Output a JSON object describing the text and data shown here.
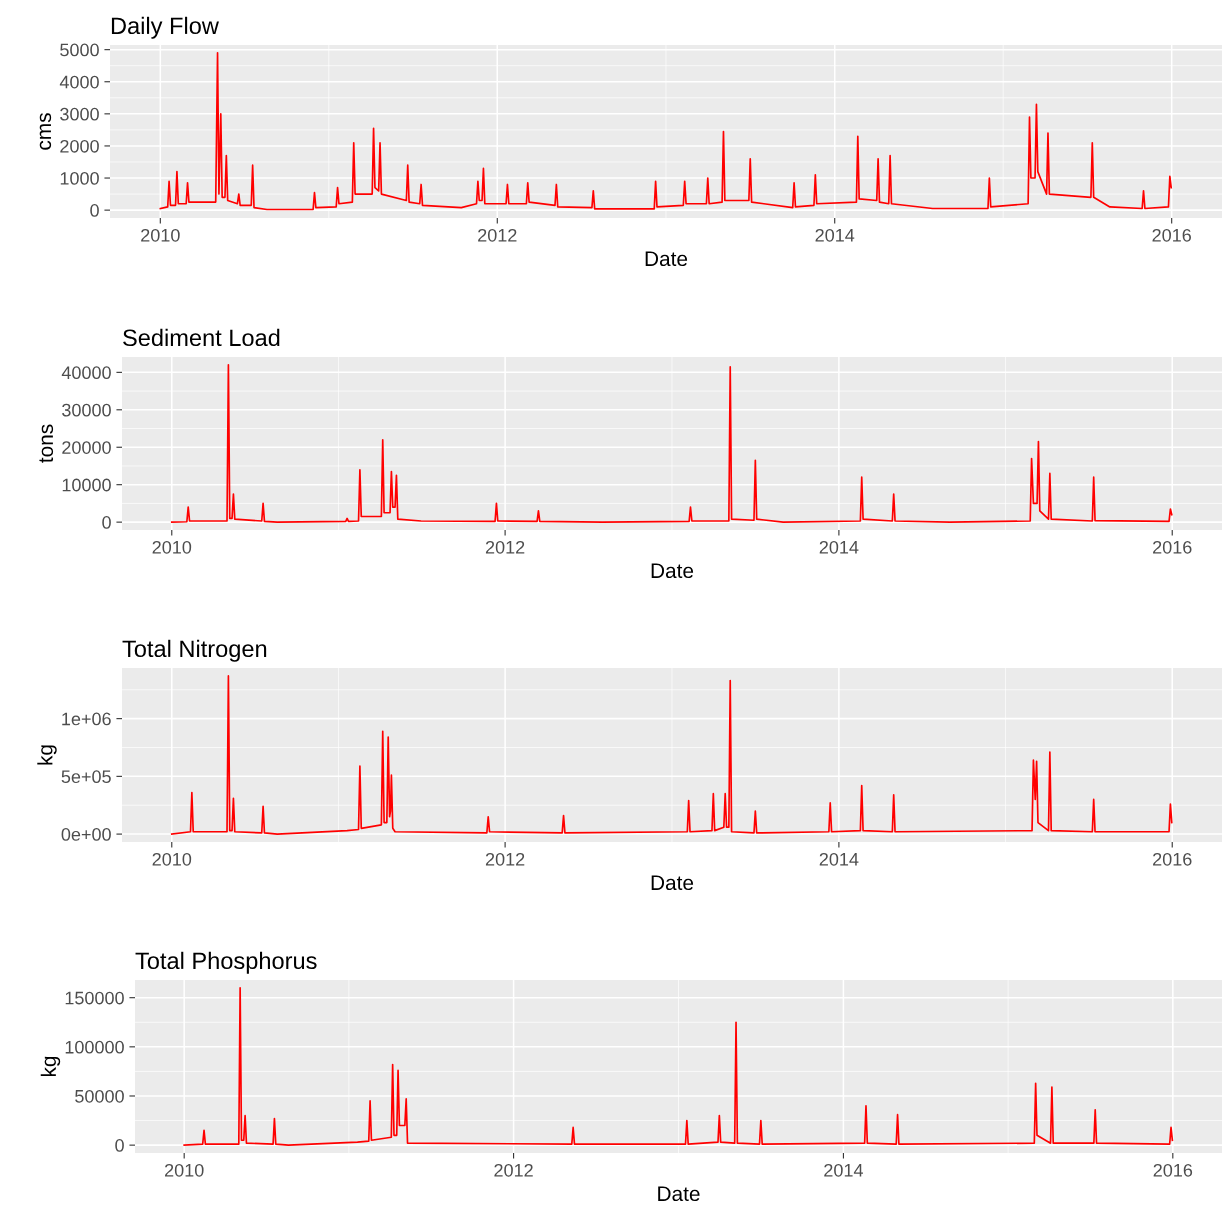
{
  "chart_data": [
    {
      "type": "line",
      "title": "Daily Flow",
      "xlabel": "Date",
      "ylabel": "cms",
      "grid": true,
      "legend": false,
      "marker": "none",
      "line_style": "solid",
      "xlim": [
        "2009-09-14",
        "2016-04-19"
      ],
      "ylim": [
        -245,
        5145
      ],
      "xticks": [
        {
          "value": "2010-01-01",
          "label": "2010"
        },
        {
          "value": "2012-01-01",
          "label": "2012"
        },
        {
          "value": "2014-01-01",
          "label": "2014"
        },
        {
          "value": "2016-01-01",
          "label": "2016"
        }
      ],
      "yticks": [
        0,
        1000,
        2000,
        3000,
        4000,
        5000
      ],
      "series": [
        {
          "color": "#ff0000",
          "x": [
            "2010-01-01",
            "2010-01-17",
            "2010-01-20",
            "2010-01-23",
            "2010-02-03",
            "2010-02-06",
            "2010-02-09",
            "2010-02-26",
            "2010-03-01",
            "2010-03-04",
            "2010-05-01",
            "2010-05-05",
            "2010-05-08",
            "2010-05-12",
            "2010-05-15",
            "2010-05-21",
            "2010-05-24",
            "2010-05-27",
            "2010-06-17",
            "2010-06-20",
            "2010-06-23",
            "2010-07-17",
            "2010-07-20",
            "2010-07-23",
            "2010-08-20",
            "2010-11-28",
            "2010-12-01",
            "2010-12-04",
            "2011-01-17",
            "2011-01-20",
            "2011-01-23",
            "2011-02-21",
            "2011-02-24",
            "2011-02-27",
            "2011-04-05",
            "2011-04-08",
            "2011-04-11",
            "2011-04-19",
            "2011-04-22",
            "2011-04-25",
            "2011-06-18",
            "2011-06-21",
            "2011-06-24",
            "2011-07-17",
            "2011-07-20",
            "2011-07-23",
            "2011-10-15",
            "2011-11-17",
            "2011-11-20",
            "2011-11-23",
            "2011-11-29",
            "2011-12-02",
            "2011-12-05",
            "2012-01-20",
            "2012-01-23",
            "2012-01-26",
            "2012-03-04",
            "2012-03-07",
            "2012-03-10",
            "2012-05-05",
            "2012-05-08",
            "2012-05-11",
            "2012-07-24",
            "2012-07-27",
            "2012-07-30",
            "2012-12-06",
            "2012-12-09",
            "2012-12-12",
            "2013-02-07",
            "2013-02-10",
            "2013-02-13",
            "2013-03-29",
            "2013-04-01",
            "2013-04-04",
            "2013-05-02",
            "2013-05-05",
            "2013-05-08",
            "2013-06-29",
            "2013-07-02",
            "2013-07-05",
            "2013-10-02",
            "2013-10-05",
            "2013-10-08",
            "2013-11-17",
            "2013-11-20",
            "2013-11-23",
            "2014-02-17",
            "2014-02-20",
            "2014-02-23",
            "2014-04-02",
            "2014-04-05",
            "2014-04-08",
            "2014-04-28",
            "2014-05-01",
            "2014-05-04",
            "2014-08-01",
            "2014-11-29",
            "2014-12-02",
            "2014-12-05",
            "2015-02-24",
            "2015-02-27",
            "2015-03-02",
            "2015-03-11",
            "2015-03-14",
            "2015-03-17",
            "2015-04-05",
            "2015-04-08",
            "2015-04-11",
            "2015-07-10",
            "2015-07-13",
            "2015-07-16",
            "2015-08-20",
            "2015-10-29",
            "2015-11-01",
            "2015-11-04",
            "2015-12-25",
            "2015-12-28",
            "2015-12-31"
          ],
          "values": [
            50,
            100,
            900,
            150,
            150,
            1200,
            200,
            200,
            850,
            250,
            250,
            4900,
            500,
            3000,
            400,
            400,
            1700,
            300,
            200,
            500,
            150,
            150,
            1400,
            80,
            20,
            20,
            550,
            80,
            100,
            700,
            200,
            250,
            2100,
            500,
            500,
            2550,
            700,
            600,
            2100,
            500,
            300,
            1400,
            250,
            200,
            800,
            150,
            80,
            200,
            900,
            300,
            300,
            1300,
            200,
            200,
            800,
            200,
            200,
            850,
            250,
            150,
            800,
            100,
            80,
            600,
            40,
            40,
            900,
            100,
            150,
            900,
            200,
            200,
            1000,
            200,
            250,
            2450,
            300,
            300,
            1600,
            250,
            80,
            850,
            100,
            150,
            1100,
            200,
            250,
            2300,
            350,
            300,
            1600,
            250,
            200,
            1700,
            200,
            50,
            50,
            1000,
            100,
            200,
            2900,
            1000,
            1000,
            3300,
            1200,
            500,
            2400,
            500,
            400,
            2100,
            400,
            100,
            50,
            600,
            50,
            100,
            1050,
            700
          ]
        }
      ]
    },
    {
      "type": "line",
      "title": "Sediment Load",
      "xlabel": "Date",
      "ylabel": "tons",
      "grid": true,
      "legend": false,
      "marker": "none",
      "line_style": "solid",
      "xlim": [
        "2009-09-14",
        "2016-04-19"
      ],
      "ylim": [
        -2100,
        44100
      ],
      "xticks": [
        {
          "value": "2010-01-01",
          "label": "2010"
        },
        {
          "value": "2012-01-01",
          "label": "2012"
        },
        {
          "value": "2014-01-01",
          "label": "2014"
        },
        {
          "value": "2016-01-01",
          "label": "2016"
        }
      ],
      "yticks": [
        0,
        10000,
        20000,
        30000,
        40000
      ],
      "series": [
        {
          "color": "#ff0000",
          "x": [
            "2010-01-01",
            "2010-02-03",
            "2010-02-06",
            "2010-02-09",
            "2010-05-02",
            "2010-05-05",
            "2010-05-08",
            "2010-05-13",
            "2010-05-16",
            "2010-05-19",
            "2010-07-17",
            "2010-07-20",
            "2010-07-23",
            "2010-08-20",
            "2011-01-17",
            "2011-01-20",
            "2011-01-23",
            "2011-02-14",
            "2011-02-17",
            "2011-02-20",
            "2011-04-05",
            "2011-04-08",
            "2011-04-11",
            "2011-04-24",
            "2011-04-27",
            "2011-04-30",
            "2011-05-05",
            "2011-05-08",
            "2011-05-11",
            "2011-07-01",
            "2011-12-10",
            "2011-12-13",
            "2011-12-16",
            "2012-03-11",
            "2012-03-14",
            "2012-03-17",
            "2012-08-01",
            "2013-02-07",
            "2013-02-10",
            "2013-02-13",
            "2013-05-05",
            "2013-05-08",
            "2013-05-11",
            "2013-06-29",
            "2013-07-02",
            "2013-07-05",
            "2013-09-01",
            "2014-02-17",
            "2014-02-20",
            "2014-02-23",
            "2014-04-28",
            "2014-05-01",
            "2014-05-04",
            "2014-09-01",
            "2015-02-24",
            "2015-02-27",
            "2015-03-03",
            "2015-03-11",
            "2015-03-14",
            "2015-03-17",
            "2015-04-05",
            "2015-04-08",
            "2015-04-11",
            "2015-07-10",
            "2015-07-13",
            "2015-07-16",
            "2015-12-25",
            "2015-12-28",
            "2015-12-31"
          ],
          "values": [
            0,
            100,
            4000,
            300,
            300,
            42000,
            1000,
            1000,
            7500,
            800,
            300,
            5000,
            200,
            0,
            200,
            1000,
            200,
            300,
            14000,
            1500,
            1500,
            22000,
            2500,
            2500,
            13500,
            4000,
            4000,
            12500,
            800,
            300,
            200,
            5000,
            300,
            200,
            3000,
            200,
            0,
            200,
            4000,
            300,
            300,
            41500,
            800,
            500,
            16500,
            800,
            0,
            300,
            12000,
            800,
            300,
            7500,
            300,
            0,
            300,
            17000,
            5000,
            5000,
            21500,
            3000,
            800,
            13000,
            800,
            300,
            12000,
            400,
            200,
            3500,
            2000
          ]
        }
      ]
    },
    {
      "type": "line",
      "title": "Total Nitrogen",
      "xlabel": "Date",
      "ylabel": "kg",
      "grid": true,
      "legend": false,
      "marker": "none",
      "line_style": "solid",
      "xlim": [
        "2009-09-14",
        "2016-04-19"
      ],
      "ylim": [
        -68500,
        1438500
      ],
      "xticks": [
        {
          "value": "2010-01-01",
          "label": "2010"
        },
        {
          "value": "2012-01-01",
          "label": "2012"
        },
        {
          "value": "2014-01-01",
          "label": "2014"
        },
        {
          "value": "2016-01-01",
          "label": "2016"
        }
      ],
      "yticks": [
        {
          "value": 0,
          "label": "0e+00"
        },
        {
          "value": 500000,
          "label": "5e+05"
        },
        {
          "value": 1000000,
          "label": "1e+06"
        }
      ],
      "series": [
        {
          "color": "#ff0000",
          "x": [
            "2010-01-01",
            "2010-02-11",
            "2010-02-14",
            "2010-02-17",
            "2010-05-02",
            "2010-05-05",
            "2010-05-08",
            "2010-05-13",
            "2010-05-16",
            "2010-05-19",
            "2010-07-17",
            "2010-07-20",
            "2010-07-23",
            "2010-08-20",
            "2011-01-20",
            "2011-02-14",
            "2011-02-17",
            "2011-02-20",
            "2011-04-05",
            "2011-04-08",
            "2011-04-11",
            "2011-04-17",
            "2011-04-20",
            "2011-04-23",
            "2011-04-25",
            "2011-04-27",
            "2011-04-30",
            "2011-05-05",
            "2011-11-22",
            "2011-11-25",
            "2011-11-28",
            "2012-05-05",
            "2012-05-08",
            "2012-05-11",
            "2013-02-03",
            "2013-02-06",
            "2013-02-09",
            "2013-03-29",
            "2013-04-01",
            "2013-04-04",
            "2013-04-24",
            "2013-04-27",
            "2013-04-30",
            "2013-05-05",
            "2013-05-08",
            "2013-05-11",
            "2013-06-29",
            "2013-07-02",
            "2013-07-05",
            "2013-12-10",
            "2013-12-13",
            "2013-12-16",
            "2014-02-17",
            "2014-02-20",
            "2014-02-23",
            "2014-04-28",
            "2014-05-01",
            "2014-05-04",
            "2015-02-28",
            "2015-03-03",
            "2015-03-07",
            "2015-03-10",
            "2015-03-13",
            "2015-04-05",
            "2015-04-08",
            "2015-04-11",
            "2015-07-10",
            "2015-07-13",
            "2015-07-16",
            "2015-12-25",
            "2015-12-28",
            "2015-12-31"
          ],
          "values": [
            0,
            20000,
            360000,
            20000,
            20000,
            1370000,
            30000,
            30000,
            310000,
            20000,
            10000,
            240000,
            10000,
            0,
            30000,
            40000,
            590000,
            50000,
            80000,
            890000,
            100000,
            100000,
            840000,
            150000,
            200000,
            510000,
            50000,
            20000,
            10000,
            150000,
            20000,
            10000,
            160000,
            10000,
            20000,
            290000,
            20000,
            30000,
            350000,
            30000,
            60000,
            350000,
            60000,
            60000,
            1330000,
            20000,
            10000,
            200000,
            10000,
            20000,
            270000,
            20000,
            30000,
            420000,
            30000,
            20000,
            340000,
            20000,
            30000,
            640000,
            300000,
            630000,
            100000,
            30000,
            710000,
            30000,
            20000,
            300000,
            20000,
            20000,
            260000,
            100000
          ]
        }
      ]
    },
    {
      "type": "line",
      "title": "Total Phosphorus",
      "xlabel": "Date",
      "ylabel": "kg",
      "grid": true,
      "legend": false,
      "marker": "none",
      "line_style": "solid",
      "xlim": [
        "2009-09-14",
        "2016-04-19"
      ],
      "ylim": [
        -8000,
        168000
      ],
      "xticks": [
        {
          "value": "2010-01-01",
          "label": "2010"
        },
        {
          "value": "2012-01-01",
          "label": "2012"
        },
        {
          "value": "2014-01-01",
          "label": "2014"
        },
        {
          "value": "2016-01-01",
          "label": "2016"
        }
      ],
      "yticks": [
        0,
        50000,
        100000,
        150000
      ],
      "series": [
        {
          "color": "#ff0000",
          "x": [
            "2010-01-01",
            "2010-02-11",
            "2010-02-14",
            "2010-02-17",
            "2010-05-02",
            "2010-05-05",
            "2010-05-08",
            "2010-05-13",
            "2010-05-16",
            "2010-05-19",
            "2010-07-17",
            "2010-07-20",
            "2010-07-23",
            "2010-08-20",
            "2011-01-20",
            "2011-02-14",
            "2011-02-17",
            "2011-02-20",
            "2011-04-05",
            "2011-04-08",
            "2011-04-11",
            "2011-04-17",
            "2011-04-20",
            "2011-04-23",
            "2011-05-05",
            "2011-05-08",
            "2011-05-11",
            "2012-05-09",
            "2012-05-12",
            "2012-05-15",
            "2013-01-16",
            "2013-01-19",
            "2013-01-22",
            "2013-03-29",
            "2013-04-01",
            "2013-04-04",
            "2013-05-05",
            "2013-05-08",
            "2013-05-11",
            "2013-06-29",
            "2013-07-02",
            "2013-07-05",
            "2014-02-17",
            "2014-02-20",
            "2014-02-23",
            "2014-04-28",
            "2014-05-01",
            "2014-05-04",
            "2015-02-28",
            "2015-03-03",
            "2015-03-06",
            "2015-04-05",
            "2015-04-08",
            "2015-04-11",
            "2015-07-10",
            "2015-07-13",
            "2015-07-16",
            "2015-12-25",
            "2015-12-28",
            "2015-12-31"
          ],
          "values": [
            0,
            1000,
            15000,
            1000,
            1000,
            160000,
            5000,
            5000,
            30000,
            2000,
            1000,
            27000,
            1000,
            0,
            3000,
            4000,
            45000,
            5000,
            8000,
            82000,
            10000,
            10000,
            76000,
            20000,
            20000,
            47000,
            2000,
            1000,
            18000,
            1000,
            1000,
            25000,
            1000,
            3000,
            30000,
            3000,
            2000,
            125000,
            2000,
            1000,
            25000,
            1000,
            2000,
            40000,
            2000,
            1000,
            31000,
            1000,
            2000,
            63000,
            10000,
            2000,
            59000,
            2000,
            2000,
            36000,
            2000,
            1000,
            18000,
            5000
          ]
        }
      ]
    }
  ]
}
